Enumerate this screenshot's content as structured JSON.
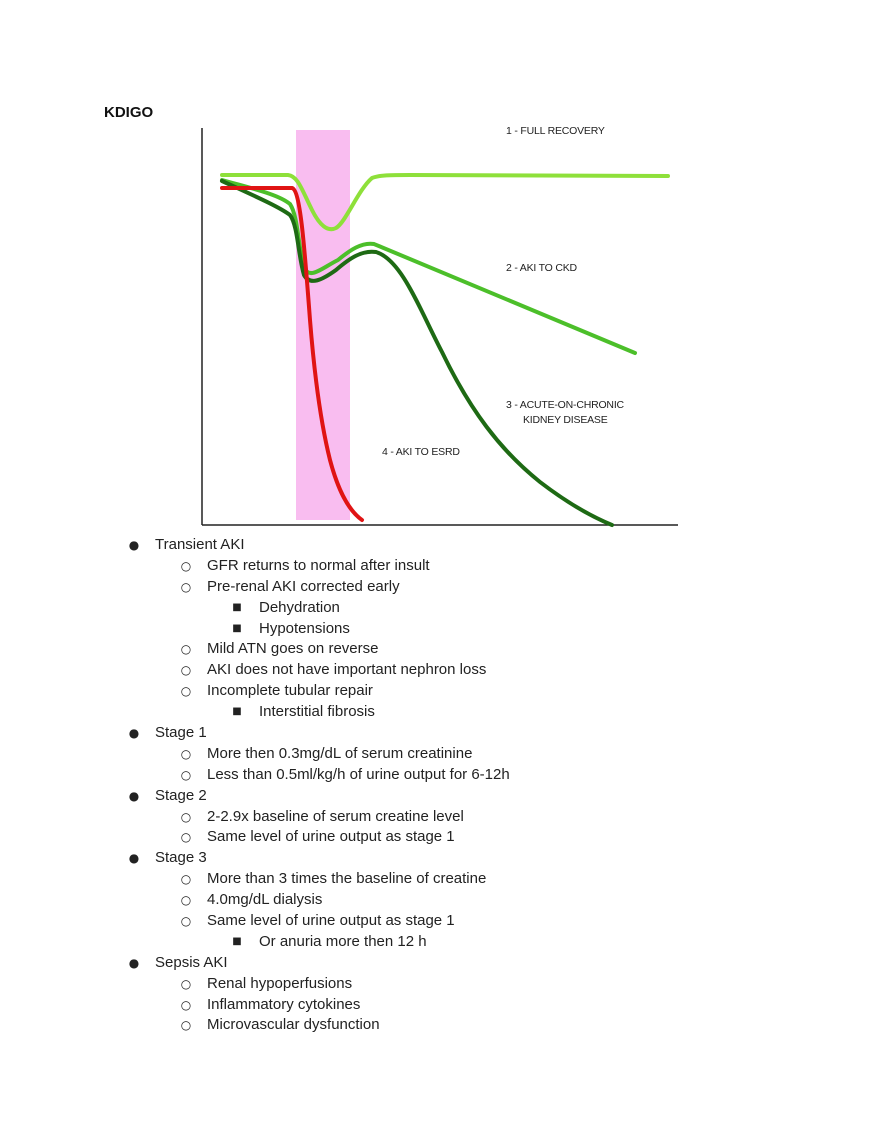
{
  "heading": "KDIGO",
  "figure": {
    "labels": [
      {
        "lines": [
          "1 - FULL RECOVERY"
        ],
        "color": "#8ee03a"
      },
      {
        "lines": [
          "2 - AKI TO CKD"
        ],
        "color": "#4cbf2a"
      },
      {
        "lines": [
          "3 - ACUTE-ON-CHRONIC",
          "KIDNEY DISEASE"
        ],
        "color": "#1e6a14"
      },
      {
        "lines": [
          "4 - AKI TO ESRD"
        ],
        "color": "#e01414"
      }
    ],
    "colors": {
      "insult_band": "#f9bdf0",
      "full_recovery": "#8ee03a",
      "aki_to_ckd": "#4cbf2a",
      "acute_on_chronic": "#1e6a14",
      "aki_to_esrd": "#e01414",
      "axis": "#222222"
    }
  },
  "notes": [
    {
      "level": 1,
      "marker": "●",
      "text": "Transient AKI"
    },
    {
      "level": 2,
      "marker": "○",
      "text": "GFR returns to normal after insult"
    },
    {
      "level": 2,
      "marker": "○",
      "text": "Pre-renal AKI corrected early"
    },
    {
      "level": 3,
      "marker": "■",
      "text": "Dehydration"
    },
    {
      "level": 3,
      "marker": "■",
      "text": "Hypotensions"
    },
    {
      "level": 2,
      "marker": "○",
      "text": "Mild ATN goes on reverse"
    },
    {
      "level": 2,
      "marker": "○",
      "text": "AKI does not have important nephron loss"
    },
    {
      "level": 2,
      "marker": "○",
      "text": "Incomplete tubular repair"
    },
    {
      "level": 3,
      "marker": "■",
      "text": "Interstitial fibrosis"
    },
    {
      "level": 1,
      "marker": "●",
      "text": "Stage 1"
    },
    {
      "level": 2,
      "marker": "○",
      "text": "More then 0.3mg/dL of serum creatinine"
    },
    {
      "level": 2,
      "marker": "○",
      "text": "Less than 0.5ml/kg/h of urine output for 6-12h"
    },
    {
      "level": 1,
      "marker": "●",
      "text": "Stage 2"
    },
    {
      "level": 2,
      "marker": "○",
      "text": "2-2.9x baseline of serum creatine level"
    },
    {
      "level": 2,
      "marker": "○",
      "text": "Same level of urine output as stage 1"
    },
    {
      "level": 1,
      "marker": "●",
      "text": "Stage 3"
    },
    {
      "level": 2,
      "marker": "○",
      "text": "More than 3 times the baseline of creatine"
    },
    {
      "level": 2,
      "marker": "○",
      "text": "4.0mg/dL dialysis"
    },
    {
      "level": 2,
      "marker": "○",
      "text": "Same level of urine output as stage 1"
    },
    {
      "level": 3,
      "marker": "■",
      "text": "Or anuria more then 12 h"
    },
    {
      "level": 1,
      "marker": "●",
      "text": "Sepsis AKI"
    },
    {
      "level": 2,
      "marker": "○",
      "text": "Renal hypoperfusions"
    },
    {
      "level": 2,
      "marker": "○",
      "text": "Inflammatory cytokines"
    },
    {
      "level": 2,
      "marker": "○",
      "text": "Microvascular dysfunction"
    }
  ]
}
